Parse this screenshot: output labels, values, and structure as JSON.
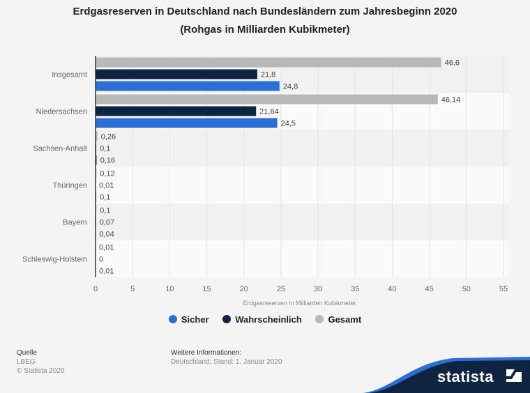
{
  "title_line1": "Erdgasreserven in Deutschland nach Bundesländern zum Jahresbeginn 2020",
  "title_line2": "(Rohgas in Milliarden Kubikmeter)",
  "colors": {
    "Sicher": "#2a6fd6",
    "Wahrscheinlich": "#0f2440",
    "Gesamt": "#b8b8b8"
  },
  "chart_data": {
    "type": "bar",
    "orientation": "horizontal",
    "title": "Erdgasreserven in Deutschland nach Bundesländern zum Jahresbeginn 2020 (Rohgas in Milliarden Kubikmeter)",
    "xlabel": "Erdgasreserven in Milliarden Kubikmeter",
    "ylabel": "",
    "xlim": [
      0,
      55
    ],
    "xticks": [
      "0",
      "5",
      "10",
      "15",
      "20",
      "25",
      "30",
      "35",
      "40",
      "45",
      "50",
      "55"
    ],
    "grid": true,
    "legend_position": "bottom",
    "categories": [
      "Insgesamt",
      "Niedersachsen",
      "Sachsen-Anhalt",
      "Thüringen",
      "Bayern",
      "Schleswig-Holstein"
    ],
    "series": [
      {
        "name": "Gesamt",
        "values": [
          46.6,
          46.14,
          0.26,
          0.12,
          0.1,
          0.01
        ],
        "labels": [
          "46,6",
          "46,14",
          "0,26",
          "0,12",
          "0,1",
          "0,01"
        ]
      },
      {
        "name": "Wahrscheinlich",
        "values": [
          21.8,
          21.64,
          0.1,
          0.01,
          0.07,
          0
        ],
        "labels": [
          "21,8",
          "21,64",
          "0,1",
          "0,01",
          "0,07",
          "0"
        ]
      },
      {
        "name": "Sicher",
        "values": [
          24.8,
          24.5,
          0.16,
          0.1,
          0.04,
          0.01
        ],
        "labels": [
          "24,8",
          "24,5",
          "0,16",
          "0,1",
          "0,04",
          "0,01"
        ]
      }
    ]
  },
  "legend": [
    {
      "name": "Sicher"
    },
    {
      "name": "Wahrscheinlich"
    },
    {
      "name": "Gesamt"
    }
  ],
  "footer": {
    "source_heading": "Quelle",
    "source": "LBEG",
    "copyright": "© Statista 2020",
    "info_heading": "Weitere Informationen:",
    "info": "Deutschland; Stand: 1. Januar 2020",
    "brand": "statista"
  }
}
